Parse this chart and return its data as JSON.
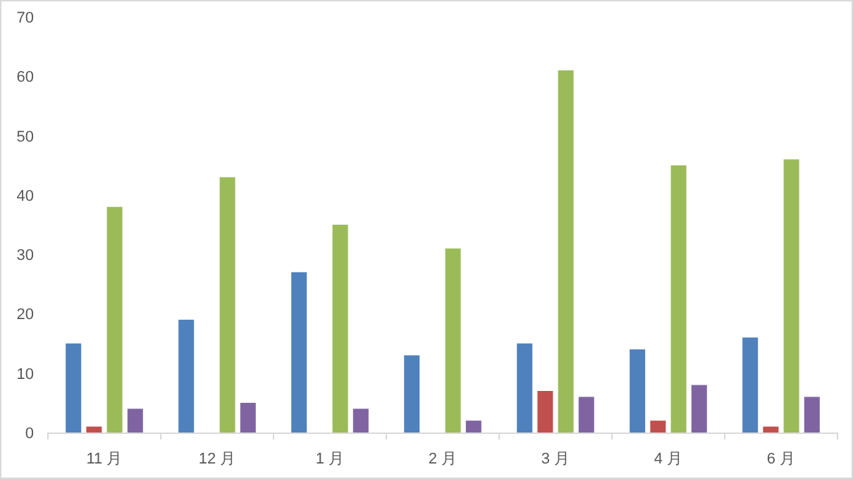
{
  "chart_data": {
    "type": "bar",
    "categories": [
      "11 月",
      "12 月",
      "1 月",
      "2 月",
      "3 月",
      "4 月",
      "6 月"
    ],
    "series": [
      {
        "color": "#4f81bd",
        "values": [
          15,
          19,
          27,
          13,
          15,
          14,
          16
        ]
      },
      {
        "color": "#c0504d",
        "values": [
          1,
          0,
          0,
          0,
          7,
          2,
          1
        ]
      },
      {
        "color": "#9bbb59",
        "values": [
          38,
          43,
          35,
          31,
          61,
          45,
          46
        ]
      },
      {
        "color": "#8064a2",
        "values": [
          4,
          5,
          4,
          2,
          6,
          8,
          6
        ]
      }
    ],
    "ylim": [
      0,
      70
    ],
    "yticks": [
      0,
      10,
      20,
      30,
      40,
      50,
      60,
      70
    ],
    "grid": false
  }
}
